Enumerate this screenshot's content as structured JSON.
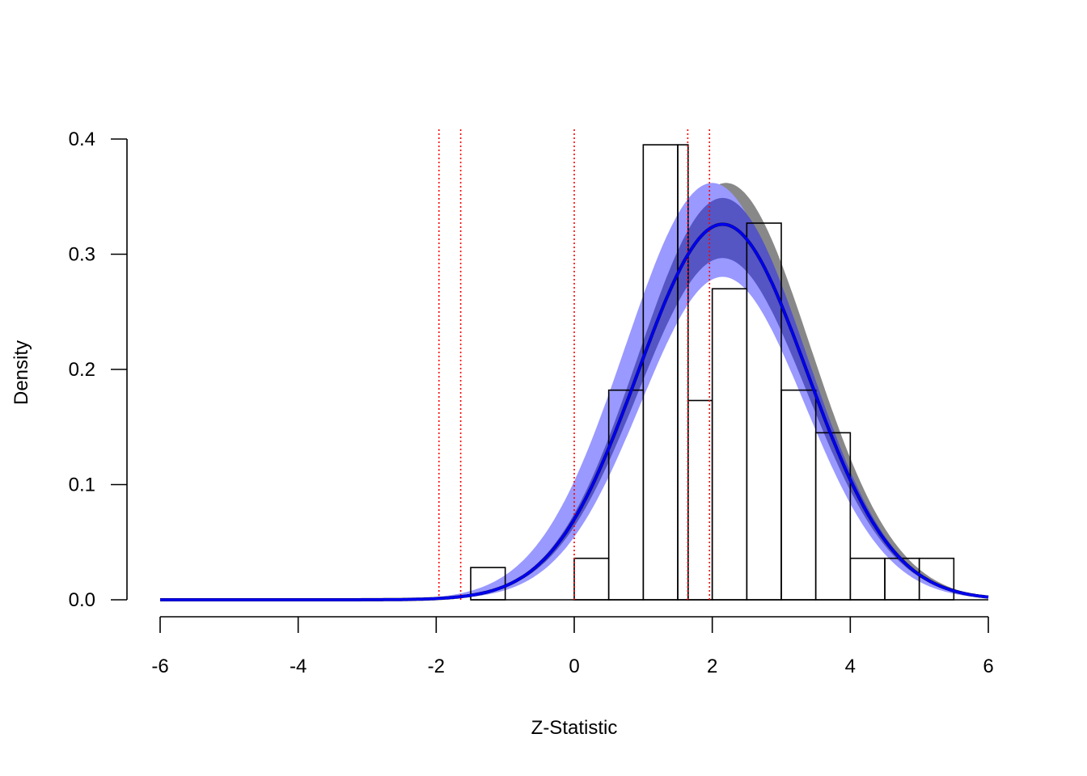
{
  "chart_data": {
    "type": "histogram",
    "title": "",
    "xlabel": "Z-Statistic",
    "ylabel": "Density",
    "xlim": [
      -6,
      6
    ],
    "ylim": [
      0,
      0.4
    ],
    "x_ticks": [
      "-6",
      "-4",
      "-2",
      "0",
      "2",
      "4",
      "6"
    ],
    "y_ticks": [
      "0.0",
      "0.1",
      "0.2",
      "0.3",
      "0.4"
    ],
    "histogram": {
      "bin_width": 0.5,
      "bin_starts": [
        -1.5,
        -1.0,
        -0.5,
        0.0,
        0.5,
        1.0,
        1.5,
        1.65,
        2.0,
        2.5,
        3.0,
        3.5,
        4.0,
        4.5,
        5.0
      ],
      "bin_ends": [
        -1.0,
        -0.5,
        0.0,
        0.5,
        1.0,
        1.5,
        1.65,
        2.0,
        2.5,
        3.0,
        3.5,
        4.0,
        4.5,
        5.0,
        5.5
      ],
      "densities": [
        0.028,
        0.0,
        0.0,
        0.036,
        0.182,
        0.395,
        0.395,
        0.173,
        0.27,
        0.327,
        0.182,
        0.145,
        0.036,
        0.036,
        0.036
      ]
    },
    "vertical_lines": [
      -1.96,
      -1.645,
      0,
      1.645,
      1.96
    ],
    "fitted_density": {
      "mean": 2.15,
      "sd": 1.225,
      "scale": 0.326,
      "band_outer_scale": [
        0.86,
        1.11
      ],
      "band_inner_scale": [
        0.91,
        1.07
      ],
      "outer_band_shift": -0.15
    },
    "colors": {
      "curve": "#0000ee",
      "outer_band": "#9999ff",
      "inner_band": "#5555c4",
      "gray_band": "#888888",
      "reference_lines": "#ff0000",
      "bars": "#000000"
    }
  }
}
